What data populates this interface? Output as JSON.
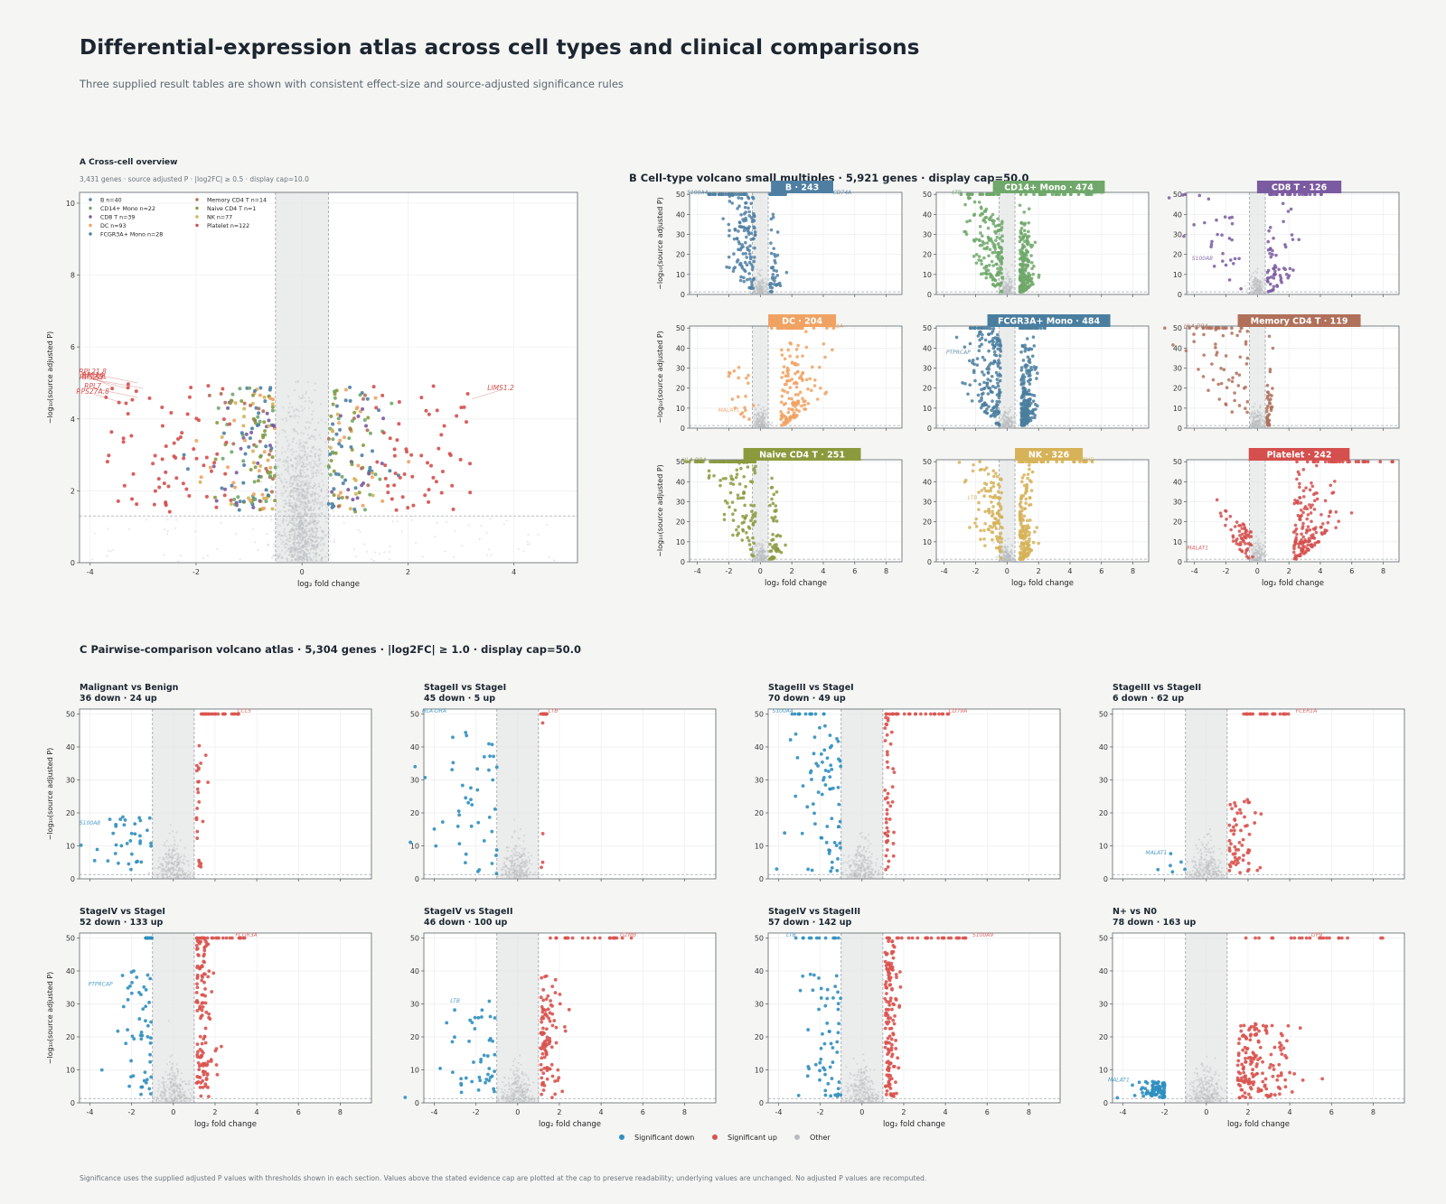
{
  "page": {
    "title": "Differential-expression atlas across cell types and clinical comparisons",
    "subtitle": "Three supplied result tables are shown with consistent effect-size and source-adjusted significance rules",
    "footnote": "Significance uses the supplied adjusted P values with thresholds shown in each section. Values above the stated evidence cap are plotted at the cap to preserve readability; underlying values are unchanged. No adjusted P values are recomputed."
  },
  "colors": {
    "down": "#2f8fbf",
    "up": "#d9534f",
    "other": "#b8bcbf",
    "B": "#4e7fa3",
    "CD14+ Mono": "#6fa86a",
    "CD8 T": "#7a5aa0",
    "DC": "#f0a262",
    "FCGR3A+ Mono": "#4a7e9f",
    "Memory CD4 T": "#b0705a",
    "Naive CD4 T": "#8c9a3e",
    "NK": "#d6b258",
    "Platelet": "#d44f4d"
  },
  "legend_bottom": [
    "Significant down",
    "Significant up",
    "Other"
  ],
  "chart_data": [
    {
      "id": "A",
      "type": "scatter",
      "title": "A   Cross-cell overview",
      "subtitle": "3,431 genes · source adjusted P · |log2FC| ≥ 0.5 · display cap=10.0",
      "xlabel": "log₂ fold change",
      "ylabel": "−log₁₀(source adjusted P)",
      "xlim": [
        -4.2,
        5.2
      ],
      "ylim": [
        0,
        10.3
      ],
      "xticks": [
        -4,
        -2,
        0,
        2,
        4
      ],
      "yticks": [
        0,
        2,
        4,
        6,
        8,
        10
      ],
      "fc_threshold": 0.5,
      "p_line": 1.3,
      "cap": 10.0,
      "grid": true,
      "legend": "top-left",
      "legend_entries": [
        {
          "label": "B  n=40",
          "group": "B"
        },
        {
          "label": "CD14+ Mono  n=22",
          "group": "CD14+ Mono"
        },
        {
          "label": "CD8 T  n=39",
          "group": "CD8 T"
        },
        {
          "label": "DC  n=93",
          "group": "DC"
        },
        {
          "label": "FCGR3A+ Mono  n=28",
          "group": "FCGR3A+ Mono"
        },
        {
          "label": "Memory CD4 T  n=14",
          "group": "Memory CD4 T"
        },
        {
          "label": "Naive CD4 T  n=1",
          "group": "Naive CD4 T"
        },
        {
          "label": "NK  n=77",
          "group": "NK"
        },
        {
          "label": "Platelet  n=122",
          "group": "Platelet"
        }
      ],
      "labels": [
        {
          "gene": "RPS24",
          "x": -3.6,
          "y": 4.9
        },
        {
          "gene": "RPL21.8",
          "x": -3.1,
          "y": 5.0
        },
        {
          "gene": "RPS27A",
          "x": -3.3,
          "y": 4.85
        },
        {
          "gene": "RPL32",
          "x": -3.0,
          "y": 4.85
        },
        {
          "gene": "RPL7",
          "x": -3.1,
          "y": 4.6
        },
        {
          "gene": "RPS27A.8",
          "x": -3.4,
          "y": 4.45
        },
        {
          "gene": "LIMS1.2",
          "x": 3.2,
          "y": 4.55
        }
      ]
    },
    {
      "id": "B",
      "type": "scatter",
      "title": "B   Cell-type volcano small multiples  ·  5,921 genes  ·  display cap=50.0",
      "xlabel": "log₂ fold change",
      "ylabel": "−log₁₀(source adjusted P)",
      "xlim": [
        -4.5,
        9
      ],
      "ylim": [
        0,
        51
      ],
      "xticks": [
        -4,
        -2,
        0,
        2,
        4,
        6,
        8
      ],
      "yticks": [
        0,
        10,
        20,
        30,
        40,
        50
      ],
      "fc_threshold": 0.5,
      "cap": 50.0,
      "panels": [
        {
          "name": "B",
          "count": 243,
          "genes": [
            {
              "g": "S100A4",
              "x": -4.0,
              "y": 51
            },
            {
              "g": "CD74A",
              "x": 5.2,
              "y": 51
            }
          ]
        },
        {
          "name": "CD14+ Mono",
          "count": 474,
          "genes": [
            {
              "g": "LTB",
              "x": -3.2,
              "y": 51
            },
            {
              "g": "S100A8",
              "x": 5.5,
              "y": 51
            }
          ]
        },
        {
          "name": "CD8 T",
          "count": 126,
          "genes": [
            {
              "g": "S100A8",
              "x": -3.5,
              "y": 18
            }
          ]
        },
        {
          "name": "DC",
          "count": 204,
          "genes": [
            {
              "g": "FCER1A",
              "x": 4.6,
              "y": 51
            },
            {
              "g": "MALAT1",
              "x": -2.0,
              "y": 9
            }
          ]
        },
        {
          "name": "FCGR3A+ Mono",
          "count": 484,
          "genes": [
            {
              "g": "PTPRCAP",
              "x": -3.1,
              "y": 38
            }
          ]
        },
        {
          "name": "Memory CD4 T",
          "count": 119,
          "genes": [
            {
              "g": "HLA-DRA",
              "x": -3.9,
              "y": 51
            }
          ]
        },
        {
          "name": "Naive CD4 T",
          "count": 251,
          "genes": [
            {
              "g": "HLA-DRA",
              "x": -4.2,
              "y": 51
            }
          ]
        },
        {
          "name": "NK",
          "count": 326,
          "genes": [
            {
              "g": "GZMB",
              "x": 5.0,
              "y": 51
            },
            {
              "g": "LTB",
              "x": -2.2,
              "y": 32
            }
          ]
        },
        {
          "name": "Platelet",
          "count": 242,
          "genes": [
            {
              "g": "GP9",
              "x": 5.4,
              "y": 51
            },
            {
              "g": "MALAT1",
              "x": -3.8,
              "y": 7
            }
          ]
        }
      ]
    },
    {
      "id": "C",
      "type": "scatter",
      "title": "C   Pairwise-comparison volcano atlas  ·  5,304 genes  ·  |log2FC| ≥ 1.0  ·  display cap=50.0",
      "xlabel": "log₂ fold change",
      "ylabel": "−log₁₀(source adjusted P)",
      "xlim": [
        -4.5,
        9.5
      ],
      "ylim": [
        0,
        51.5
      ],
      "xticks": [
        -4,
        -2,
        0,
        2,
        4,
        6,
        8
      ],
      "yticks": [
        0,
        10,
        20,
        30,
        40,
        50
      ],
      "fc_threshold": 1.0,
      "cap": 50.0,
      "panels": [
        {
          "name": "Malignant vs Benign",
          "summary": "36 down · 24 up",
          "down": 36,
          "up": 24,
          "genes": [
            {
              "g": "CCL5",
              "x": 3.4,
              "y": 51
            },
            {
              "g": "S100A8",
              "x": -4.0,
              "y": 17
            }
          ]
        },
        {
          "name": "StageII vs StageI",
          "summary": "45 down · 5 up",
          "down": 45,
          "up": 5,
          "genes": [
            {
              "g": "HLA-DRA",
              "x": -4.0,
              "y": 51
            },
            {
              "g": "LTB",
              "x": 1.7,
              "y": 51
            }
          ]
        },
        {
          "name": "StageIII vs StageI",
          "summary": "70 down · 49 up",
          "down": 70,
          "up": 49,
          "genes": [
            {
              "g": "S100A4",
              "x": -3.8,
              "y": 51
            },
            {
              "g": "CD79A",
              "x": 4.6,
              "y": 51
            }
          ]
        },
        {
          "name": "StageIII vs StageII",
          "summary": "6 down · 62 up",
          "down": 6,
          "up": 62,
          "genes": [
            {
              "g": "FCER1A",
              "x": 4.8,
              "y": 51
            },
            {
              "g": "MALAT1",
              "x": -2.4,
              "y": 8
            }
          ]
        },
        {
          "name": "StageIV vs StageI",
          "summary": "52 down · 133 up",
          "down": 52,
          "up": 133,
          "genes": [
            {
              "g": "FCGR3A",
              "x": 3.5,
              "y": 51
            },
            {
              "g": "PTPRCAP",
              "x": -3.5,
              "y": 36
            }
          ]
        },
        {
          "name": "StageIV vs StageII",
          "summary": "46 down · 100 up",
          "down": 46,
          "up": 100,
          "genes": [
            {
              "g": "GZMB",
              "x": 5.3,
              "y": 51
            },
            {
              "g": "LTB",
              "x": -3.0,
              "y": 31
            }
          ]
        },
        {
          "name": "StageIV vs StageIII",
          "summary": "57 down · 142 up",
          "down": 57,
          "up": 142,
          "genes": [
            {
              "g": "LTB",
              "x": -3.4,
              "y": 51
            },
            {
              "g": "S100A9",
              "x": 5.8,
              "y": 51
            }
          ]
        },
        {
          "name": "N+ vs N0",
          "summary": "78 down · 163 up",
          "down": 78,
          "up": 163,
          "genes": [
            {
              "g": "GP9",
              "x": 5.3,
              "y": 51
            },
            {
              "g": "MALAT1",
              "x": -4.2,
              "y": 7
            }
          ]
        }
      ]
    }
  ]
}
